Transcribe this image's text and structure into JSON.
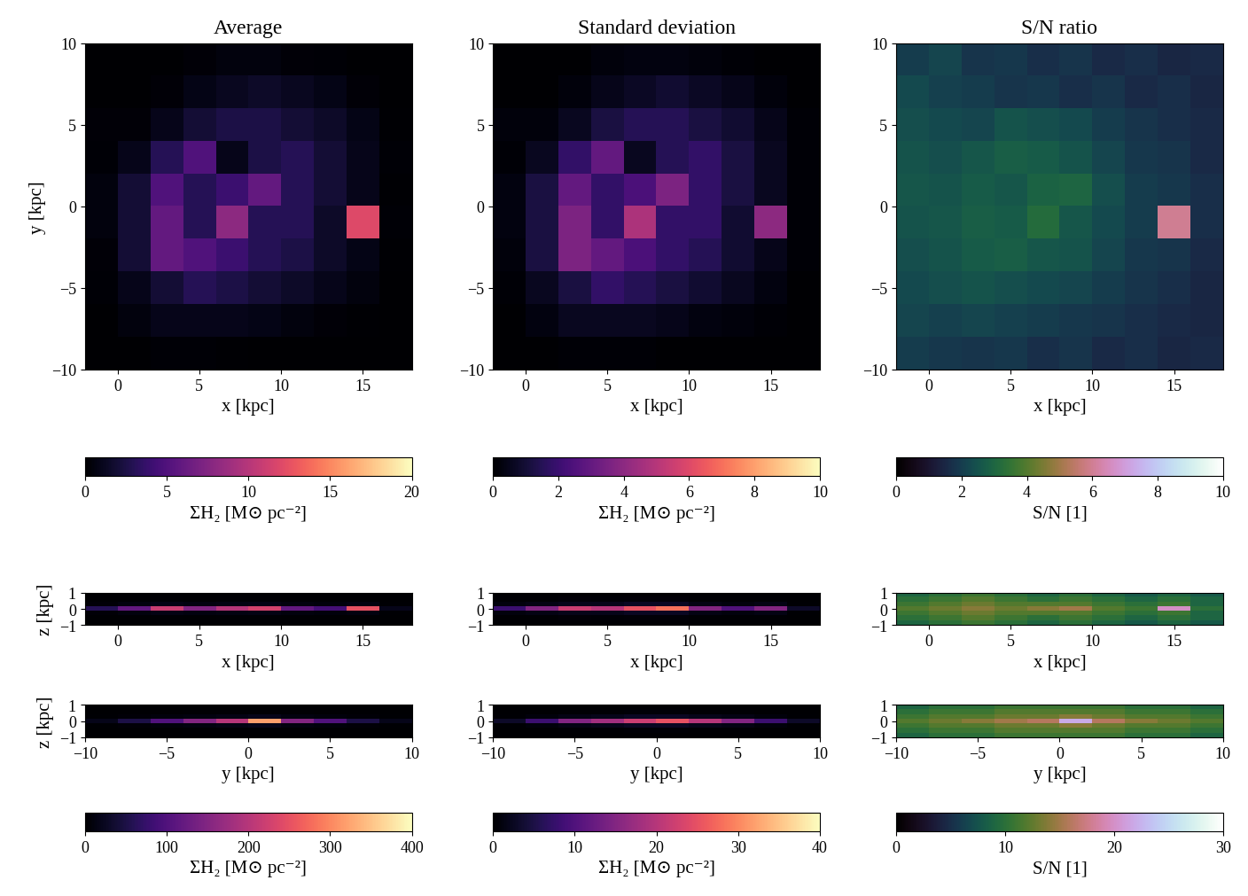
{
  "chart_data": [
    {
      "type": "heatmap",
      "title": "Average",
      "xlabel": "x [kpc]",
      "ylabel": "y [kpc]",
      "xlim": [
        -2,
        18
      ],
      "ylim": [
        -10,
        10
      ],
      "xticks": [
        0,
        5,
        10,
        15
      ],
      "yticks": [
        {
          "value": -10,
          "label": "−10"
        },
        {
          "value": -5,
          "label": "−5"
        },
        0,
        5,
        10
      ],
      "color": "magma",
      "color_range": [
        0,
        20
      ],
      "colorbar": {
        "ticks": [
          0,
          5,
          10,
          15,
          20
        ],
        "label": "ΣH₂ [M⊙ pc⁻²]"
      },
      "cells": [
        [
          0,
          0,
          0,
          0.3,
          0.5,
          0.5,
          0.3,
          0.2,
          0,
          0
        ],
        [
          0,
          0,
          0.3,
          0.8,
          1.2,
          1.5,
          1.2,
          0.8,
          0.3,
          0
        ],
        [
          0.3,
          0.3,
          1,
          2,
          2.5,
          2.5,
          2,
          1.5,
          0.8,
          0.1
        ],
        [
          0.2,
          1,
          3,
          5,
          1,
          2.5,
          3,
          2,
          1,
          0.2
        ],
        [
          0.5,
          2,
          5,
          3,
          4,
          6,
          3,
          2,
          1,
          0.1
        ],
        [
          0.5,
          2,
          6,
          3,
          8,
          3,
          3,
          1.5,
          12,
          0.2
        ],
        [
          0.3,
          2,
          6,
          5,
          4,
          3,
          2.5,
          1.5,
          0.8,
          0.1
        ],
        [
          0.2,
          1,
          2,
          3,
          2.5,
          2,
          1.5,
          1,
          0.5,
          0
        ],
        [
          0,
          0.5,
          1,
          1,
          1,
          0.8,
          0.5,
          0.3,
          0.1,
          0
        ],
        [
          0,
          0,
          0.2,
          0.2,
          0.1,
          0,
          0,
          0,
          0,
          0
        ]
      ]
    },
    {
      "type": "heatmap",
      "title": "Standard deviation",
      "xlabel": "x [kpc]",
      "xlim": [
        -2,
        18
      ],
      "ylim": [
        -10,
        10
      ],
      "xticks": [
        0,
        5,
        10,
        15
      ],
      "yticks": [
        {
          "value": -10,
          "label": "−10"
        },
        {
          "value": -5,
          "label": "−5"
        },
        0,
        5,
        10
      ],
      "color": "magma",
      "color_range": [
        0,
        10
      ],
      "colorbar": {
        "ticks": [
          0,
          2,
          4,
          6,
          8,
          10
        ],
        "label": "ΣH₂ [M⊙ pc⁻²]"
      },
      "cells": [
        [
          0,
          0,
          0,
          0.2,
          0.3,
          0.3,
          0.2,
          0.1,
          0,
          0
        ],
        [
          0,
          0,
          0.2,
          0.5,
          0.7,
          0.9,
          0.7,
          0.5,
          0.2,
          0
        ],
        [
          0.2,
          0.2,
          0.6,
          1.2,
          1.5,
          1.5,
          1.2,
          0.9,
          0.5,
          0.1
        ],
        [
          0.1,
          0.6,
          1.8,
          3,
          0.6,
          1.5,
          1.8,
          1.2,
          0.6,
          0.1
        ],
        [
          0.3,
          1.2,
          3,
          1.8,
          2.4,
          3.6,
          1.8,
          1.2,
          0.6,
          0.1
        ],
        [
          0.3,
          1.2,
          3.6,
          1.8,
          4.8,
          1.8,
          1.8,
          0.9,
          4,
          0.1
        ],
        [
          0.2,
          1.2,
          3.6,
          3,
          2.4,
          1.8,
          1.5,
          0.9,
          0.5,
          0.1
        ],
        [
          0.1,
          0.6,
          1.2,
          1.8,
          1.5,
          1.2,
          0.9,
          0.6,
          0.3,
          0
        ],
        [
          0,
          0.3,
          0.6,
          0.6,
          0.6,
          0.5,
          0.3,
          0.2,
          0.1,
          0
        ],
        [
          0,
          0,
          0.1,
          0.1,
          0.1,
          0,
          0,
          0,
          0,
          0
        ]
      ]
    },
    {
      "type": "heatmap",
      "title": "S/N ratio",
      "xlabel": "x [kpc]",
      "xlim": [
        -2,
        18
      ],
      "ylim": [
        -10,
        10
      ],
      "xticks": [
        0,
        5,
        10,
        15
      ],
      "yticks": [
        {
          "value": -10,
          "label": "−10"
        },
        {
          "value": -5,
          "label": "−5"
        },
        0,
        5,
        10
      ],
      "color": "cubehelix",
      "color_range": [
        0,
        10
      ],
      "colorbar": {
        "ticks": [
          0,
          2,
          4,
          6,
          8,
          10
        ],
        "label": "S/N [1]"
      },
      "cells": [
        [
          2.0,
          2.2,
          1.8,
          1.9,
          1.7,
          1.8,
          1.6,
          1.7,
          1.5,
          1.6
        ],
        [
          2.3,
          2.1,
          2.0,
          1.8,
          1.9,
          1.7,
          1.8,
          1.6,
          1.7,
          1.5
        ],
        [
          2.4,
          2.3,
          2.2,
          2.5,
          2.4,
          2.3,
          2.0,
          1.8,
          1.7,
          1.6
        ],
        [
          2.5,
          2.4,
          2.6,
          2.8,
          2.7,
          2.5,
          2.2,
          1.9,
          1.8,
          1.6
        ],
        [
          2.6,
          2.5,
          2.7,
          2.6,
          2.9,
          3.0,
          2.4,
          2.0,
          1.9,
          1.7
        ],
        [
          2.5,
          2.6,
          2.8,
          2.7,
          3.2,
          2.6,
          2.3,
          2.0,
          6.0,
          1.7
        ],
        [
          2.4,
          2.5,
          2.7,
          2.8,
          2.6,
          2.5,
          2.2,
          1.9,
          1.8,
          1.6
        ],
        [
          2.3,
          2.4,
          2.5,
          2.4,
          2.3,
          2.2,
          2.0,
          1.8,
          1.7,
          1.5
        ],
        [
          2.2,
          2.1,
          2.2,
          2.1,
          2.0,
          1.9,
          1.8,
          1.7,
          1.6,
          1.5
        ],
        [
          2.0,
          1.9,
          1.8,
          1.9,
          1.7,
          1.8,
          1.6,
          1.7,
          1.5,
          1.6
        ]
      ]
    },
    {
      "type": "heatmap",
      "xlabel": "x [kpc]",
      "ylabel": "z [kpc]",
      "xlim": [
        -2,
        18
      ],
      "ylim": [
        -1,
        1
      ],
      "xticks": [
        0,
        5,
        10,
        15
      ],
      "yticks": [
        {
          "value": -1,
          "label": "−1"
        },
        0,
        1
      ],
      "color": "magma",
      "color_range": [
        0,
        400
      ],
      "cells": [
        [
          0,
          0,
          0,
          0,
          0,
          0,
          0,
          0,
          0,
          0
        ],
        [
          1,
          1,
          2,
          1,
          2,
          2,
          1,
          1,
          1,
          0
        ],
        [
          6,
          10,
          15,
          12,
          14,
          15,
          10,
          8,
          12,
          2
        ],
        [
          60,
          120,
          220,
          150,
          200,
          230,
          120,
          90,
          250,
          20
        ],
        [
          6,
          10,
          15,
          12,
          14,
          15,
          10,
          8,
          12,
          2
        ],
        [
          1,
          1,
          2,
          1,
          2,
          2,
          1,
          1,
          1,
          0
        ],
        [
          0,
          0,
          0,
          0,
          0,
          0,
          0,
          0,
          0,
          0
        ]
      ]
    },
    {
      "type": "heatmap",
      "xlabel": "x [kpc]",
      "xlim": [
        -2,
        18
      ],
      "ylim": [
        -1,
        1
      ],
      "xticks": [
        0,
        5,
        10,
        15
      ],
      "yticks": [
        {
          "value": -1,
          "label": "−1"
        },
        0,
        1
      ],
      "color": "magma",
      "color_range": [
        0,
        40
      ],
      "cells": [
        [
          0,
          0,
          0,
          0,
          0,
          0,
          0,
          0,
          0,
          0
        ],
        [
          0.2,
          0.3,
          0.5,
          0.4,
          0.5,
          0.5,
          0.3,
          0.2,
          0.3,
          0
        ],
        [
          1,
          1.5,
          2,
          2,
          2.5,
          2.5,
          1.5,
          1,
          1.5,
          0.3
        ],
        [
          8,
          15,
          22,
          20,
          25,
          28,
          15,
          10,
          15,
          3
        ],
        [
          1,
          1.5,
          2,
          2,
          2.5,
          2.5,
          1.5,
          1,
          1.5,
          0.3
        ],
        [
          0.2,
          0.3,
          0.5,
          0.4,
          0.5,
          0.5,
          0.3,
          0.2,
          0.3,
          0
        ],
        [
          0,
          0,
          0,
          0,
          0,
          0,
          0,
          0,
          0,
          0
        ]
      ]
    },
    {
      "type": "heatmap",
      "xlabel": "x [kpc]",
      "xlim": [
        -2,
        18
      ],
      "ylim": [
        -1,
        1
      ],
      "xticks": [
        0,
        5,
        10,
        15
      ],
      "yticks": [
        {
          "value": -1,
          "label": "−1"
        },
        0,
        1
      ],
      "color": "cubehelix",
      "color_range": [
        0,
        30
      ],
      "cells": [
        [
          9,
          10,
          11,
          10,
          9,
          10,
          9,
          8,
          9,
          8
        ],
        [
          10,
          11,
          12,
          11,
          10,
          11,
          10,
          9,
          10,
          9
        ],
        [
          11,
          12,
          13,
          12,
          12,
          12,
          11,
          10,
          11,
          9
        ],
        [
          12,
          13,
          14,
          13,
          14,
          15,
          12,
          11,
          20,
          10
        ],
        [
          11,
          12,
          13,
          12,
          12,
          12,
          11,
          10,
          11,
          9
        ],
        [
          10,
          11,
          12,
          11,
          10,
          11,
          10,
          9,
          10,
          9
        ],
        [
          9,
          10,
          11,
          10,
          9,
          10,
          9,
          8,
          9,
          8
        ]
      ]
    },
    {
      "type": "heatmap",
      "xlabel": "y [kpc]",
      "ylabel": "z [kpc]",
      "xlim": [
        -10,
        10
      ],
      "ylim": [
        -1,
        1
      ],
      "xticks": [
        {
          "value": -10,
          "label": "−10"
        },
        {
          "value": -5,
          "label": "−5"
        },
        0,
        5,
        10
      ],
      "yticks": [
        {
          "value": -1,
          "label": "−1"
        },
        0,
        1
      ],
      "color": "magma",
      "color_range": [
        0,
        400
      ],
      "colorbar": {
        "ticks": [
          0,
          100,
          200,
          300,
          400
        ],
        "label": "ΣH₂ [M⊙ pc⁻²]"
      },
      "cells": [
        [
          0,
          0,
          0,
          0,
          0,
          0,
          0,
          0,
          0,
          0
        ],
        [
          0,
          1,
          1,
          2,
          2,
          3,
          2,
          1,
          1,
          0
        ],
        [
          2,
          5,
          8,
          12,
          15,
          20,
          12,
          8,
          5,
          2
        ],
        [
          20,
          50,
          100,
          150,
          200,
          320,
          150,
          100,
          50,
          20
        ],
        [
          2,
          5,
          8,
          12,
          15,
          20,
          12,
          8,
          5,
          2
        ],
        [
          0,
          1,
          1,
          2,
          2,
          3,
          2,
          1,
          1,
          0
        ],
        [
          0,
          0,
          0,
          0,
          0,
          0,
          0,
          0,
          0,
          0
        ]
      ]
    },
    {
      "type": "heatmap",
      "xlabel": "y [kpc]",
      "xlim": [
        -10,
        10
      ],
      "ylim": [
        -1,
        1
      ],
      "xticks": [
        {
          "value": -10,
          "label": "−10"
        },
        {
          "value": -5,
          "label": "−5"
        },
        0,
        5,
        10
      ],
      "yticks": [
        {
          "value": -1,
          "label": "−1"
        },
        0,
        1
      ],
      "color": "magma",
      "color_range": [
        0,
        40
      ],
      "colorbar": {
        "ticks": [
          0,
          10,
          20,
          30,
          40
        ],
        "label": "ΣH₂ [M⊙ pc⁻²]"
      },
      "cells": [
        [
          0,
          0,
          0,
          0,
          0,
          0,
          0,
          0,
          0,
          0
        ],
        [
          0,
          0.1,
          0.2,
          0.3,
          0.4,
          0.4,
          0.3,
          0.2,
          0.1,
          0
        ],
        [
          0.3,
          0.8,
          1.5,
          2,
          2.5,
          2.5,
          2,
          1.5,
          0.8,
          0.3
        ],
        [
          3,
          8,
          15,
          18,
          22,
          25,
          20,
          15,
          8,
          3
        ],
        [
          0.3,
          0.8,
          1.5,
          2,
          2.5,
          2.5,
          2,
          1.5,
          0.8,
          0.3
        ],
        [
          0,
          0.1,
          0.2,
          0.3,
          0.4,
          0.4,
          0.3,
          0.2,
          0.1,
          0
        ],
        [
          0,
          0,
          0,
          0,
          0,
          0,
          0,
          0,
          0,
          0
        ]
      ]
    },
    {
      "type": "heatmap",
      "xlabel": "y [kpc]",
      "xlim": [
        -10,
        10
      ],
      "ylim": [
        -1,
        1
      ],
      "xticks": [
        {
          "value": -10,
          "label": "−10"
        },
        {
          "value": -5,
          "label": "−5"
        },
        0,
        5,
        10
      ],
      "yticks": [
        {
          "value": -1,
          "label": "−1"
        },
        0,
        1
      ],
      "color": "cubehelix",
      "color_range": [
        0,
        30
      ],
      "colorbar": {
        "ticks": [
          0,
          10,
          20,
          30
        ],
        "label": "S/N [1]"
      },
      "cells": [
        [
          9,
          10,
          10,
          11,
          11,
          11,
          11,
          10,
          10,
          9
        ],
        [
          10,
          11,
          11,
          12,
          12,
          12,
          12,
          11,
          11,
          10
        ],
        [
          11,
          12,
          12,
          13,
          13,
          14,
          13,
          12,
          12,
          11
        ],
        [
          12,
          13,
          14,
          15,
          16,
          22,
          16,
          14,
          13,
          12
        ],
        [
          11,
          12,
          12,
          13,
          13,
          14,
          13,
          12,
          12,
          11
        ],
        [
          10,
          11,
          11,
          12,
          12,
          12,
          12,
          11,
          11,
          10
        ],
        [
          9,
          10,
          10,
          11,
          11,
          11,
          11,
          10,
          10,
          9
        ]
      ]
    }
  ]
}
